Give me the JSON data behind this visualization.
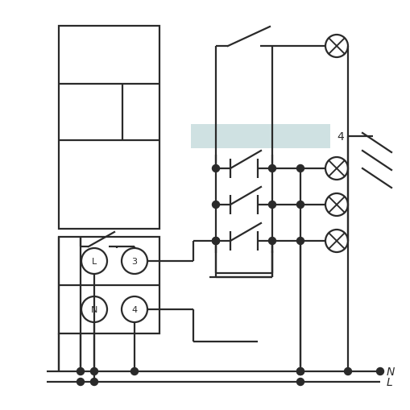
{
  "bg_color": "#ffffff",
  "line_color": "#2a2a2a",
  "highlight_color": "#b0cdd0",
  "highlight_alpha": 0.6,
  "lw": 1.6,
  "label_4": "4",
  "label_N": "N",
  "label_L": "L"
}
